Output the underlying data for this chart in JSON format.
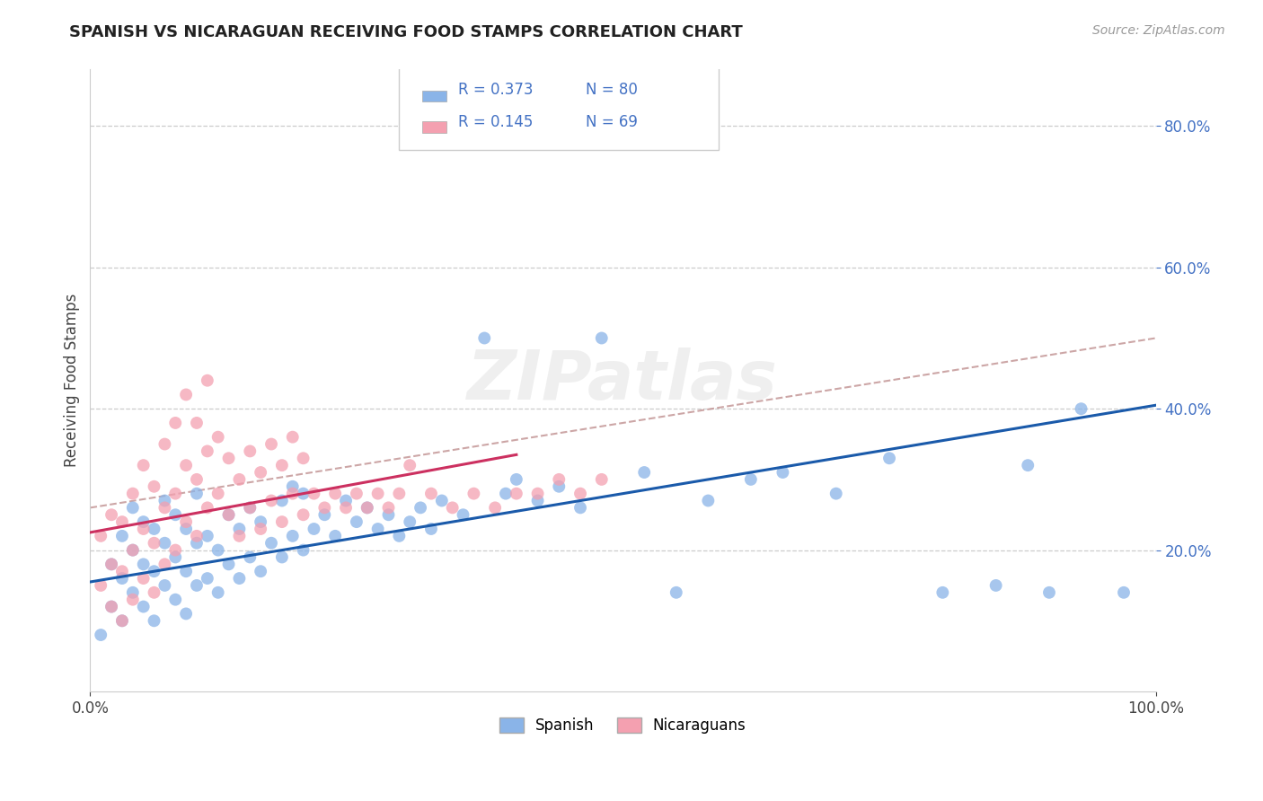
{
  "title": "SPANISH VS NICARAGUAN RECEIVING FOOD STAMPS CORRELATION CHART",
  "source_text": "Source: ZipAtlas.com",
  "ylabel": "Receiving Food Stamps",
  "x_min": 0.0,
  "x_max": 1.0,
  "y_min": 0.0,
  "y_max": 0.88,
  "y_ticks": [
    0.2,
    0.4,
    0.6,
    0.8
  ],
  "y_tick_labels": [
    "20.0%",
    "40.0%",
    "60.0%",
    "80.0%"
  ],
  "x_tick_left_label": "0.0%",
  "x_tick_right_label": "100.0%",
  "spanish_color": "#8ab4e8",
  "spanish_edge_color": "#6090c8",
  "nicaraguan_color": "#f4a0b0",
  "nicaraguan_edge_color": "#d07080",
  "spanish_line_color": "#1a5aaa",
  "nicaraguan_line_color": "#cc3060",
  "dashed_line_color": "#c09090",
  "tick_label_color": "#4472c4",
  "R_spanish": 0.373,
  "N_spanish": 80,
  "R_nicaraguan": 0.145,
  "N_nicaraguan": 69,
  "legend_label_spanish": "Spanish",
  "legend_label_nicaraguan": "Nicaraguans",
  "watermark": "ZIPatlas",
  "spanish_x": [
    0.01,
    0.02,
    0.02,
    0.03,
    0.03,
    0.03,
    0.04,
    0.04,
    0.04,
    0.05,
    0.05,
    0.05,
    0.06,
    0.06,
    0.06,
    0.07,
    0.07,
    0.07,
    0.08,
    0.08,
    0.08,
    0.09,
    0.09,
    0.09,
    0.1,
    0.1,
    0.1,
    0.11,
    0.11,
    0.12,
    0.12,
    0.13,
    0.13,
    0.14,
    0.14,
    0.15,
    0.15,
    0.16,
    0.16,
    0.17,
    0.18,
    0.18,
    0.19,
    0.19,
    0.2,
    0.2,
    0.21,
    0.22,
    0.23,
    0.24,
    0.25,
    0.26,
    0.27,
    0.28,
    0.29,
    0.3,
    0.31,
    0.32,
    0.33,
    0.35,
    0.37,
    0.39,
    0.4,
    0.42,
    0.44,
    0.46,
    0.48,
    0.52,
    0.55,
    0.58,
    0.62,
    0.65,
    0.7,
    0.75,
    0.8,
    0.85,
    0.88,
    0.9,
    0.93,
    0.97
  ],
  "spanish_y": [
    0.08,
    0.12,
    0.18,
    0.1,
    0.16,
    0.22,
    0.14,
    0.2,
    0.26,
    0.12,
    0.18,
    0.24,
    0.1,
    0.17,
    0.23,
    0.15,
    0.21,
    0.27,
    0.13,
    0.19,
    0.25,
    0.11,
    0.17,
    0.23,
    0.15,
    0.21,
    0.28,
    0.16,
    0.22,
    0.14,
    0.2,
    0.18,
    0.25,
    0.16,
    0.23,
    0.19,
    0.26,
    0.17,
    0.24,
    0.21,
    0.19,
    0.27,
    0.22,
    0.29,
    0.2,
    0.28,
    0.23,
    0.25,
    0.22,
    0.27,
    0.24,
    0.26,
    0.23,
    0.25,
    0.22,
    0.24,
    0.26,
    0.23,
    0.27,
    0.25,
    0.5,
    0.28,
    0.3,
    0.27,
    0.29,
    0.26,
    0.5,
    0.31,
    0.14,
    0.27,
    0.3,
    0.31,
    0.28,
    0.33,
    0.14,
    0.15,
    0.32,
    0.14,
    0.4,
    0.14
  ],
  "nicaraguan_x": [
    0.01,
    0.01,
    0.02,
    0.02,
    0.02,
    0.03,
    0.03,
    0.03,
    0.04,
    0.04,
    0.04,
    0.05,
    0.05,
    0.05,
    0.06,
    0.06,
    0.06,
    0.07,
    0.07,
    0.07,
    0.08,
    0.08,
    0.08,
    0.09,
    0.09,
    0.09,
    0.1,
    0.1,
    0.1,
    0.11,
    0.11,
    0.11,
    0.12,
    0.12,
    0.13,
    0.13,
    0.14,
    0.14,
    0.15,
    0.15,
    0.16,
    0.16,
    0.17,
    0.17,
    0.18,
    0.18,
    0.19,
    0.19,
    0.2,
    0.2,
    0.21,
    0.22,
    0.23,
    0.24,
    0.25,
    0.26,
    0.27,
    0.28,
    0.29,
    0.3,
    0.32,
    0.34,
    0.36,
    0.38,
    0.4,
    0.42,
    0.44,
    0.46,
    0.48
  ],
  "nicaraguan_y": [
    0.15,
    0.22,
    0.12,
    0.18,
    0.25,
    0.1,
    0.17,
    0.24,
    0.13,
    0.2,
    0.28,
    0.16,
    0.23,
    0.32,
    0.14,
    0.21,
    0.29,
    0.18,
    0.26,
    0.35,
    0.2,
    0.28,
    0.38,
    0.24,
    0.32,
    0.42,
    0.22,
    0.3,
    0.38,
    0.26,
    0.34,
    0.44,
    0.28,
    0.36,
    0.25,
    0.33,
    0.22,
    0.3,
    0.26,
    0.34,
    0.23,
    0.31,
    0.27,
    0.35,
    0.24,
    0.32,
    0.28,
    0.36,
    0.25,
    0.33,
    0.28,
    0.26,
    0.28,
    0.26,
    0.28,
    0.26,
    0.28,
    0.26,
    0.28,
    0.32,
    0.28,
    0.26,
    0.28,
    0.26,
    0.28,
    0.28,
    0.3,
    0.28,
    0.3
  ],
  "blue_line_x0": 0.0,
  "blue_line_y0": 0.155,
  "blue_line_x1": 1.0,
  "blue_line_y1": 0.405,
  "pink_line_x0": 0.0,
  "pink_line_y0": 0.225,
  "pink_line_x1": 0.4,
  "pink_line_y1": 0.335,
  "dashed_line_x0": 0.0,
  "dashed_line_y0": 0.26,
  "dashed_line_x1": 1.0,
  "dashed_line_y1": 0.5
}
